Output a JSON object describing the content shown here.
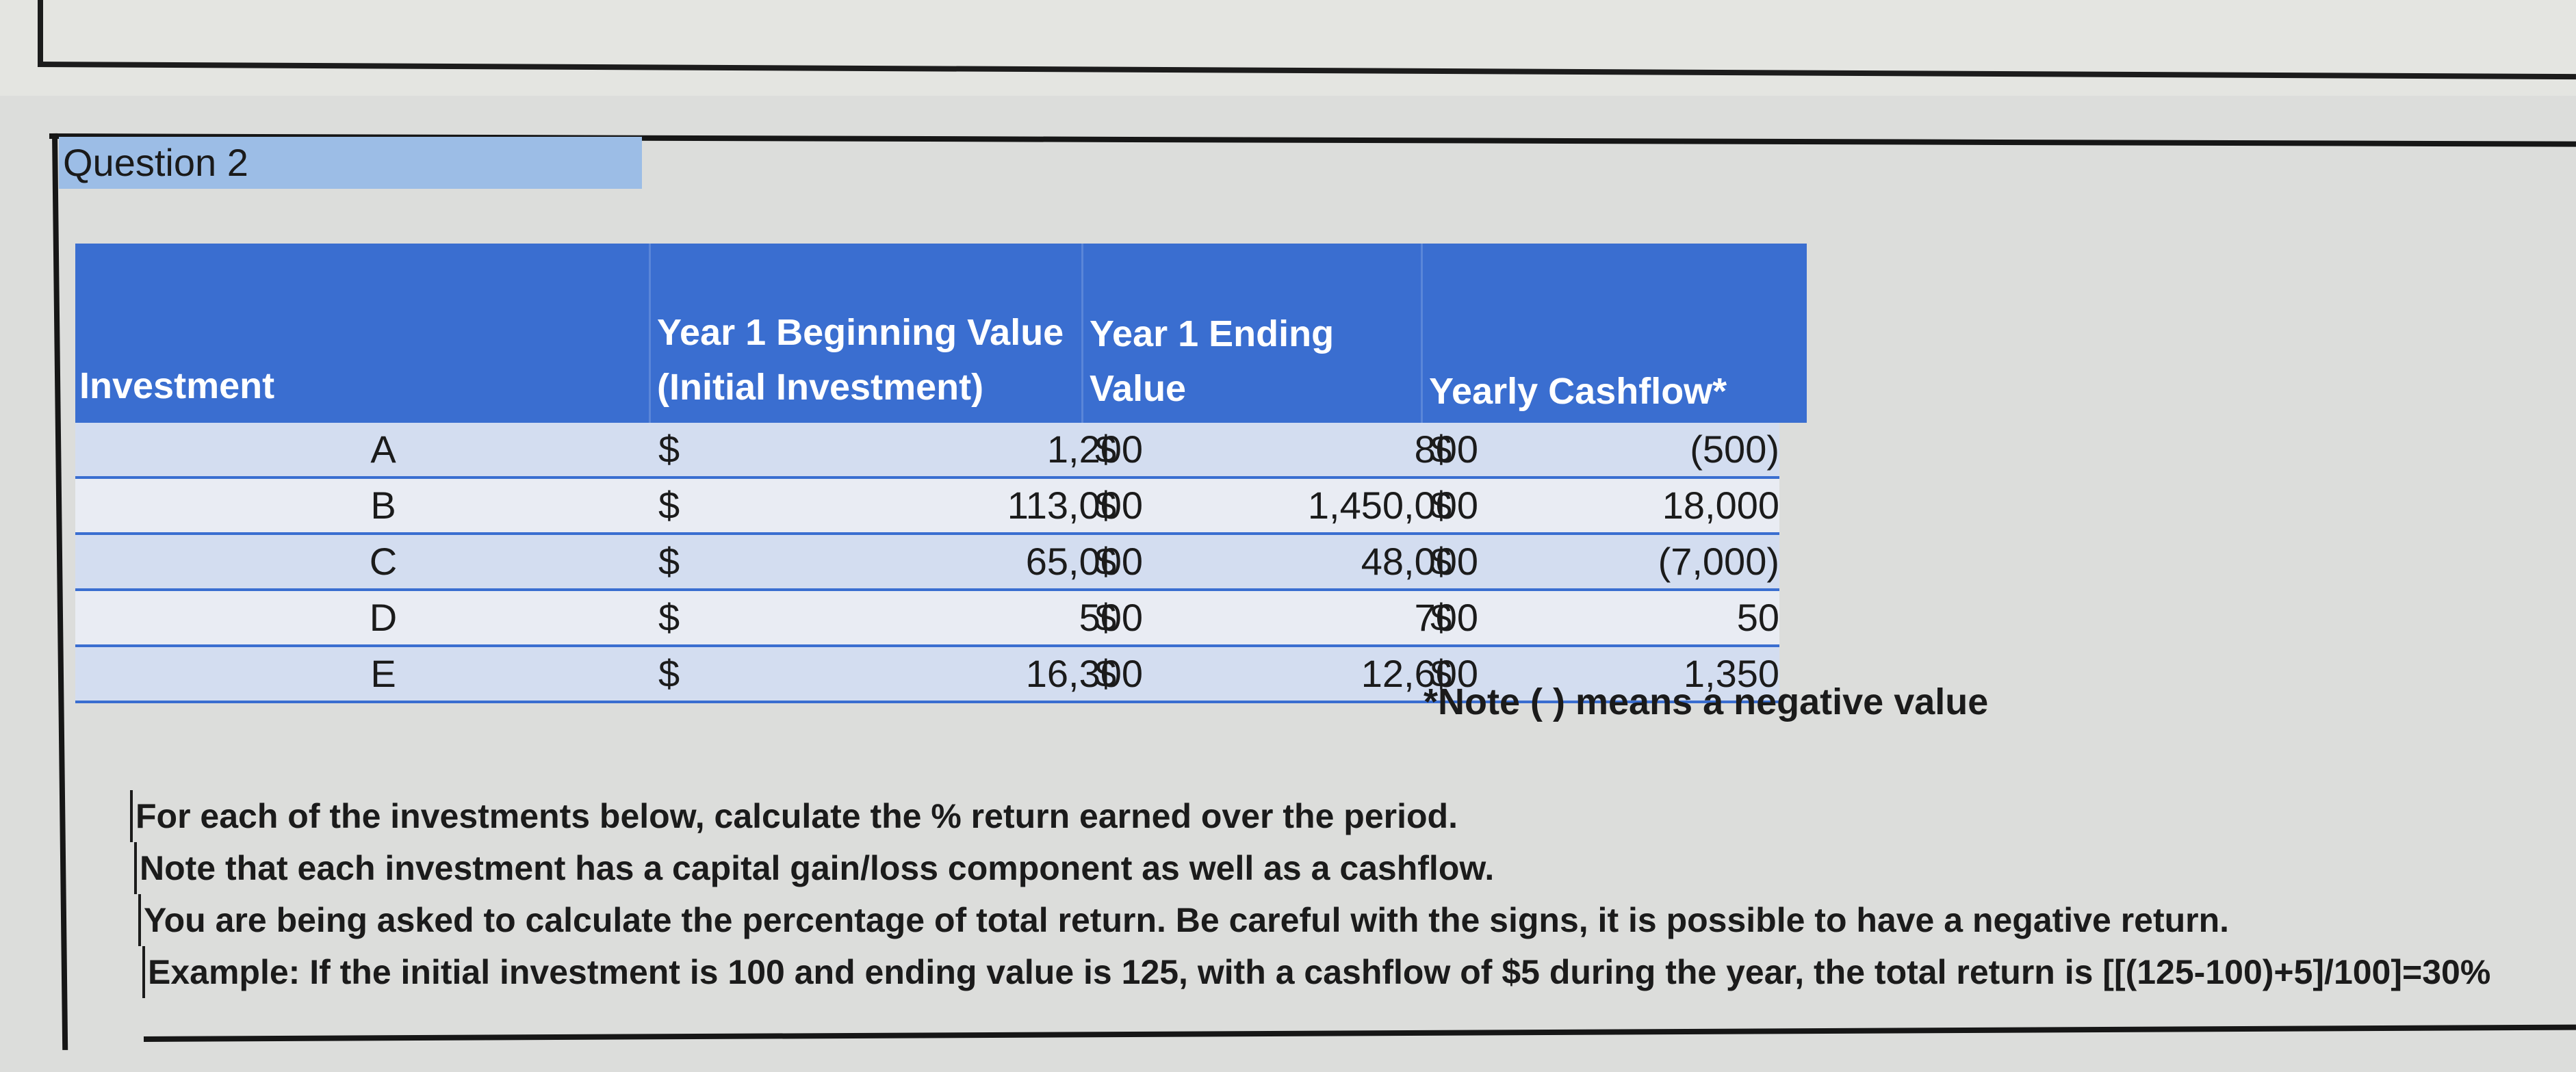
{
  "question": {
    "label": "Question 2"
  },
  "table": {
    "headers": {
      "investment": "Investment",
      "beginning_line1": "Year 1 Beginning Value",
      "beginning_line2": "(Initial Investment)",
      "ending_line1": "Year 1 Ending",
      "ending_line2": "Value",
      "cashflow": "Yearly Cashflow*"
    },
    "rows": [
      {
        "label": "A",
        "dollar1": "$",
        "beginning": "1,200",
        "dollar2": "$",
        "ending": "800",
        "dollar3": "$",
        "cashflow": "(500)"
      },
      {
        "label": "B",
        "dollar1": "$",
        "beginning": "113,000",
        "dollar2": "$",
        "ending": "1,450,000",
        "dollar3": "$",
        "cashflow": "18,000"
      },
      {
        "label": "C",
        "dollar1": "$",
        "beginning": "65,000",
        "dollar2": "$",
        "ending": "48,000",
        "dollar3": "$",
        "cashflow": "(7,000)"
      },
      {
        "label": "D",
        "dollar1": "$",
        "beginning": "500",
        "dollar2": "$",
        "ending": "700",
        "dollar3": "$",
        "cashflow": "50"
      },
      {
        "label": "E",
        "dollar1": "$",
        "beginning": "16,300",
        "dollar2": "$",
        "ending": "12,600",
        "dollar3": "$",
        "cashflow": "1,350"
      }
    ],
    "note": "*Note ( ) means a negative value"
  },
  "instructions": [
    "For each of the investments below, calculate the % return earned over the period.",
    "Note that each investment has a capital gain/loss component as well as a cashflow.",
    "You are being asked to calculate the percentage of total return.  Be careful with the signs, it is possible to have a negative return.",
    "Example: If the initial investment is 100 and ending value is 125, with a cashflow of $5 during the year, the total return is [[(125-100)+5]/100]=30%"
  ],
  "colors": {
    "header_blue": "#3a6ed0",
    "question_label_bg": "#9cbde6",
    "row_odd": "#d3ddf0",
    "row_even": "#e9ecf3"
  }
}
